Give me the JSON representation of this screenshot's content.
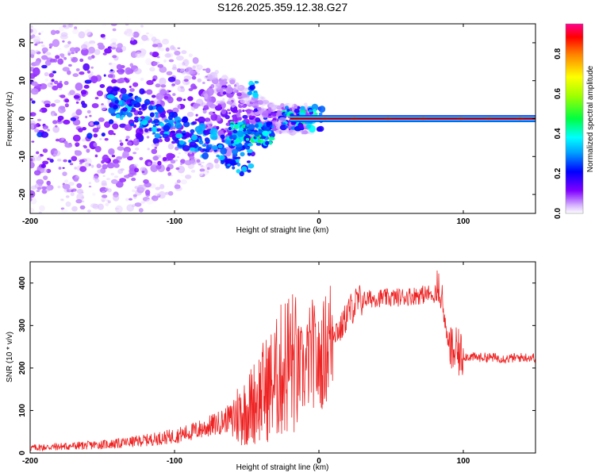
{
  "title": "S126.2025.359.12.38.G27",
  "colors": {
    "snr_line": "#ee2222",
    "axes": "#000000"
  },
  "chart_data": [
    {
      "type": "heatmap",
      "name": "spectrogram",
      "xlabel": "Height of straight line (km)",
      "ylabel": "Frequency (Hz)",
      "xlim": [
        -200,
        150
      ],
      "ylim": [
        -25,
        25
      ],
      "xticks": [
        -200,
        -100,
        0,
        100
      ],
      "xtick_labels": [
        "-200",
        "-100",
        "0",
        "100"
      ],
      "yticks": [
        -20,
        -10,
        0,
        10,
        20
      ],
      "ytick_labels": [
        "-20",
        "-10",
        "0",
        "10",
        "20"
      ],
      "colorbar": {
        "label": "Normalized spectral amplitude",
        "range": [
          0,
          0.95
        ],
        "ticks": [
          0.0,
          0.2,
          0.4,
          0.6,
          0.8
        ],
        "tick_labels": [
          "0.0",
          "0.2",
          "0.4",
          "0.6",
          "0.8"
        ]
      },
      "features": {
        "carrier_line": {
          "x_start": -20,
          "x_end": 150,
          "frequency": 0,
          "amplitude": 0.95
        },
        "diffuse_scatter": {
          "x_range": [
            -200,
            -25
          ],
          "frequency_spread": [
            -25,
            25
          ],
          "amplitude": [
            0.0,
            0.35
          ]
        },
        "descending_streak": {
          "x_range": [
            -120,
            -60
          ],
          "frequency_range": [
            5,
            -12
          ],
          "amplitude": [
            0.2,
            0.5
          ]
        },
        "feature_near_minus45": {
          "x": -45,
          "frequency": 8,
          "amplitude": 0.35
        }
      }
    },
    {
      "type": "line",
      "name": "snr",
      "xlabel": "Height of straight line (km)",
      "ylabel": "SNR (10 * v/v)",
      "xlim": [
        -200,
        150
      ],
      "ylim": [
        0,
        450
      ],
      "xticks": [
        -200,
        -100,
        0,
        100
      ],
      "xtick_labels": [
        "-200",
        "-100",
        "0",
        "100"
      ],
      "yticks": [
        0,
        100,
        200,
        300,
        400
      ],
      "ytick_labels": [
        "0",
        "100",
        "200",
        "300",
        "400"
      ],
      "series": [
        {
          "name": "SNR",
          "x": [
            -200,
            -180,
            -160,
            -140,
            -120,
            -100,
            -90,
            -80,
            -70,
            -60,
            -50,
            -40,
            -35,
            -30,
            -25,
            -20,
            -15,
            -10,
            -5,
            0,
            5,
            10,
            15,
            20,
            25,
            30,
            40,
            50,
            60,
            70,
            80,
            85,
            90,
            100,
            110,
            120,
            130,
            140,
            150
          ],
          "values": [
            12,
            15,
            18,
            22,
            30,
            40,
            48,
            58,
            70,
            85,
            100,
            140,
            155,
            170,
            200,
            220,
            200,
            190,
            240,
            205,
            250,
            290,
            290,
            330,
            350,
            360,
            365,
            365,
            368,
            372,
            375,
            360,
            245,
            228,
            225,
            225,
            222,
            225,
            225
          ]
        }
      ]
    }
  ]
}
